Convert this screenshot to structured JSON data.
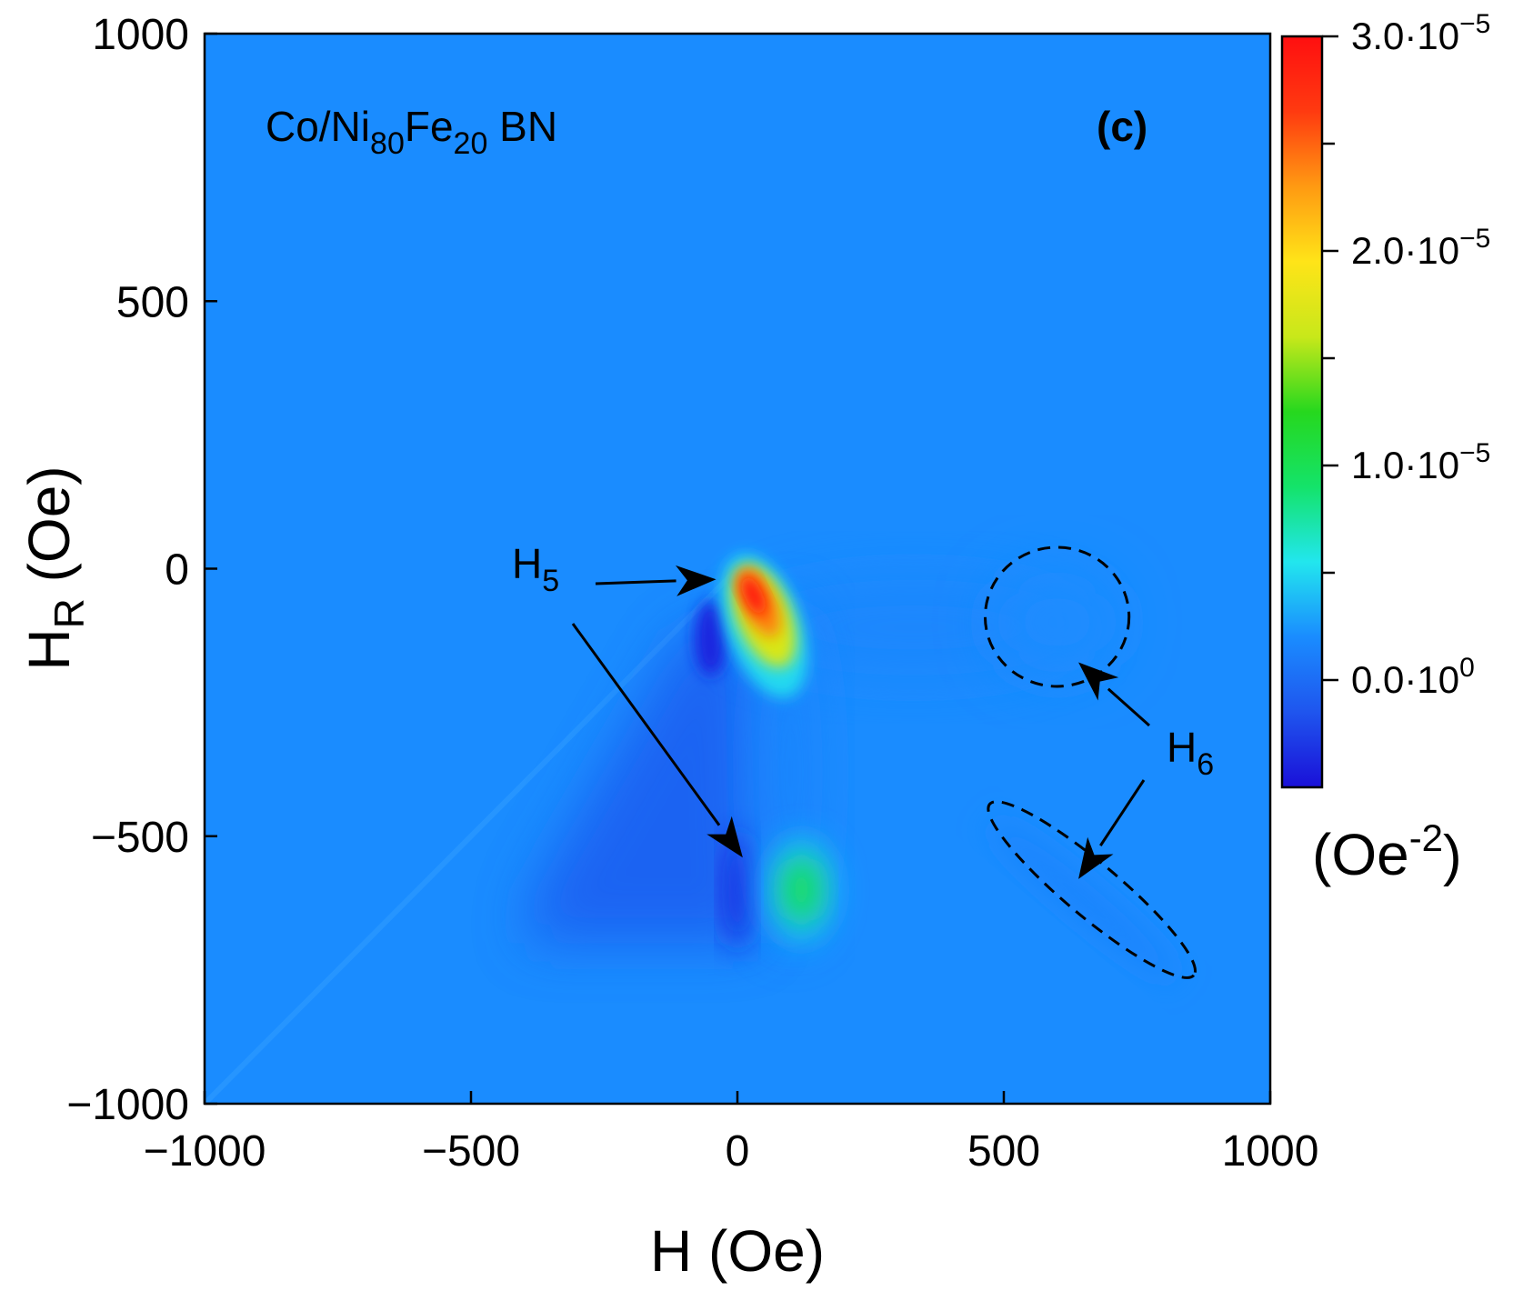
{
  "chart_data": {
    "type": "heatmap",
    "panel_label": "(c)",
    "sample_label": {
      "base": "Co/Ni",
      "sub1": "80",
      "mid": "Fe",
      "sub2": "20",
      "tail": " BN"
    },
    "xlabel": "H (Oe)",
    "ylabel": {
      "main": "H",
      "sub": "R",
      "tail": " (Oe)"
    },
    "xlim": [
      -1000,
      1000
    ],
    "ylim": [
      -1000,
      1000
    ],
    "x_ticks": [
      {
        "value": -1000,
        "label": "−1000"
      },
      {
        "value": -500,
        "label": "−500"
      },
      {
        "value": 0,
        "label": "0"
      },
      {
        "value": 500,
        "label": "500"
      },
      {
        "value": 1000,
        "label": "1000"
      }
    ],
    "y_ticks": [
      {
        "value": 1000,
        "label": "1000"
      },
      {
        "value": 500,
        "label": "500"
      },
      {
        "value": 0,
        "label": "0"
      },
      {
        "value": -500,
        "label": "−500"
      },
      {
        "value": -1000,
        "label": "−1000"
      }
    ],
    "colorbar": {
      "unit": {
        "base": "(Oe",
        "sup": "-2",
        "tail": ")"
      },
      "range": [
        -5e-06,
        3e-05
      ],
      "stops": [
        "#1a10d8",
        "#1f55ee",
        "#1a8cff",
        "#22e6ee",
        "#14e36a",
        "#26d81e",
        "#c8e81a",
        "#ffe418",
        "#ff9a12",
        "#ff3a10",
        "#ff0f10"
      ],
      "labeled_ticks": [
        {
          "value": 3e-05,
          "mantissa": "3.0·10",
          "exp": "−5"
        },
        {
          "value": 2e-05,
          "mantissa": "2.0·10",
          "exp": "−5"
        },
        {
          "value": 1e-05,
          "mantissa": "1.0·10",
          "exp": "−5"
        },
        {
          "value": 0.0,
          "mantissa": "0.0·10",
          "exp": "0"
        }
      ],
      "minor_ticks": [
        2.5e-05,
        1.5e-05,
        5e-06
      ]
    },
    "background_level": 0.0,
    "features": [
      {
        "name": "peak",
        "x": 30,
        "y": -50,
        "level": 3e-05
      },
      {
        "name": "lobe",
        "x": 120,
        "y": -600,
        "level": 1e-05
      },
      {
        "name": "broad",
        "x": 600,
        "y": -100,
        "level": 2e-06
      },
      {
        "name": "ridge",
        "x": 650,
        "y": -620,
        "level": 1e-06
      },
      {
        "name": "negative-dip",
        "x": -30,
        "y": -600,
        "level": -4e-06
      }
    ],
    "annotations": [
      {
        "label_main": "H",
        "label_sub": "5",
        "targets": [
          {
            "x": -40,
            "y": -20
          },
          {
            "x": 10,
            "y": -540
          }
        ]
      },
      {
        "label_main": "H",
        "label_sub": "6",
        "targets": [
          {
            "x": 640,
            "y": -175
          },
          {
            "x": 640,
            "y": -580
          }
        ]
      }
    ],
    "dashed_regions": [
      {
        "shape": "circle",
        "cx": 600,
        "cy": -90,
        "rx": 135,
        "ry": 130,
        "angle_deg": 0
      },
      {
        "shape": "ellipse",
        "cx": 665,
        "cy": -600,
        "rx": 250,
        "ry": 50,
        "angle_deg": 40
      }
    ]
  }
}
